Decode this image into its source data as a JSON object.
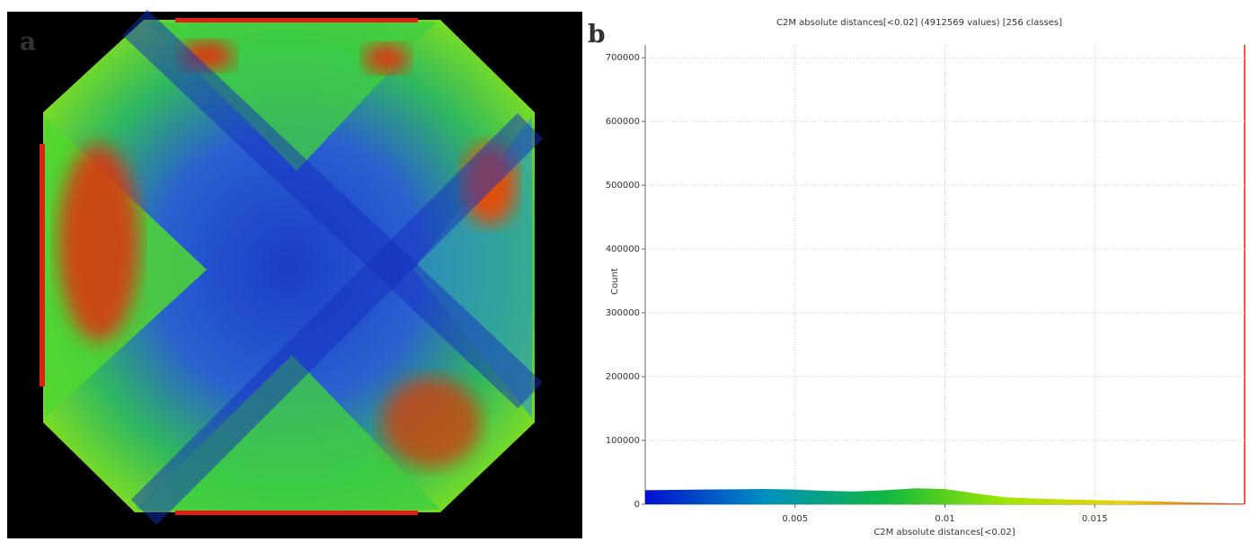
{
  "panel_labels": [
    "a",
    "b"
  ],
  "chart_data": {
    "type": "area",
    "title": "C2M absolute distances[<0.02] (4912569 values)  [256 classes]",
    "x_label": "C2M absolute distances[<0.02]",
    "y_label": "Count",
    "x": [
      0,
      0.001,
      0.002,
      0.003,
      0.004,
      0.005,
      0.006,
      0.007,
      0.008,
      0.009,
      0.01,
      0.011,
      0.012,
      0.013,
      0.014,
      0.015,
      0.016,
      0.017,
      0.018,
      0.019,
      0.02
    ],
    "values": [
      22000,
      22500,
      23000,
      23500,
      24000,
      23000,
      21000,
      20000,
      22000,
      25000,
      24000,
      17000,
      11000,
      9000,
      7500,
      6500,
      5500,
      4500,
      3000,
      2000,
      1000
    ],
    "colorscale": [
      "#0010d0",
      "#0090c0",
      "#10b840",
      "#a0e800",
      "#f0d000",
      "#e04010"
    ],
    "xlim": [
      0,
      0.02
    ],
    "ylim": [
      0,
      720000
    ],
    "xticks": [
      0.005,
      0.01,
      0.015
    ],
    "yticks": [
      0,
      100000,
      200000,
      300000,
      400000,
      500000,
      600000,
      700000
    ],
    "grid": true
  }
}
